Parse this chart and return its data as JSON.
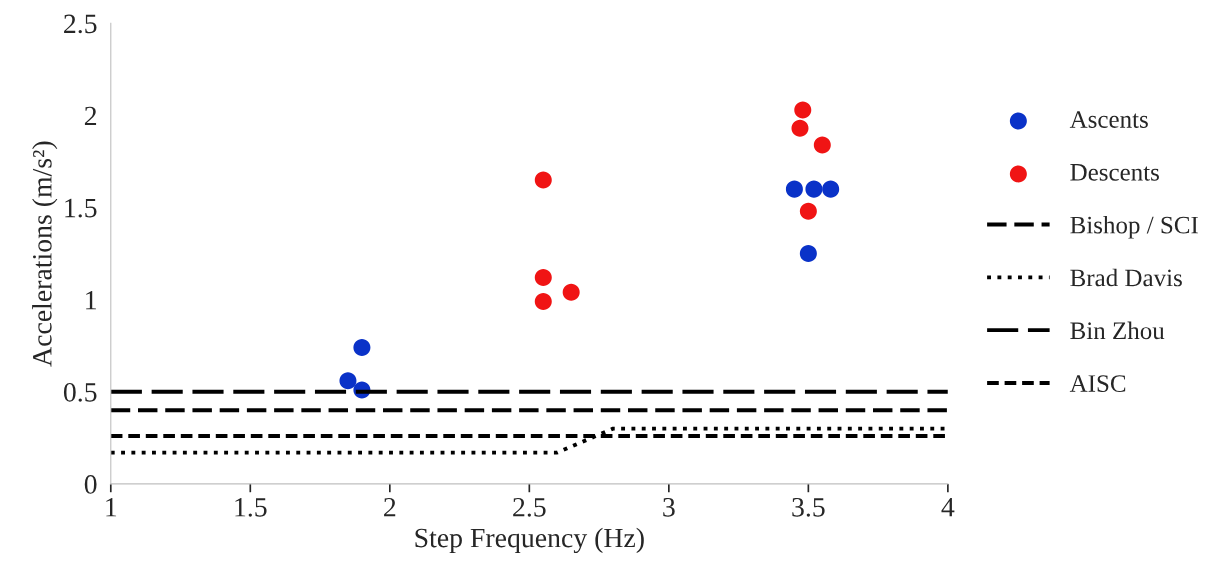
{
  "chart_data": {
    "type": "scatter",
    "xlabel": "Step Frequency (Hz)",
    "ylabel": "Accelerations (m/s²)",
    "xlim": [
      1,
      4
    ],
    "ylim": [
      0,
      2.5
    ],
    "xticks": [
      1,
      1.5,
      2,
      2.5,
      3,
      3.5,
      4
    ],
    "yticks": [
      0,
      0.5,
      1,
      1.5,
      2,
      2.5
    ],
    "grid": false,
    "legend": "right",
    "series": [
      {
        "name": "Ascents",
        "marker": "circle",
        "color": "#0a32c8",
        "x": [
          1.85,
          1.9,
          1.9,
          3.45,
          3.5,
          3.52,
          3.58
        ],
        "values": [
          0.56,
          0.74,
          0.51,
          1.6,
          1.25,
          1.6,
          1.6
        ]
      },
      {
        "name": "Descents",
        "marker": "circle",
        "color": "#f01414",
        "x": [
          2.55,
          2.55,
          2.55,
          2.65,
          3.48,
          3.47,
          3.55,
          3.5
        ],
        "values": [
          1.65,
          1.12,
          0.99,
          1.04,
          2.03,
          1.93,
          1.84,
          1.48
        ]
      },
      {
        "name": "Bishop / SCI",
        "type": "line",
        "line_style": "dashed",
        "color": "#000000",
        "x": [
          1,
          4
        ],
        "values": [
          0.4,
          0.4
        ]
      },
      {
        "name": "Brad Davis",
        "type": "line",
        "line_style": "dotted",
        "color": "#000000",
        "x": [
          1,
          2.6,
          2.8,
          4
        ],
        "values": [
          0.17,
          0.17,
          0.3,
          0.3
        ]
      },
      {
        "name": "Bin Zhou",
        "type": "line",
        "line_style": "dashed",
        "color": "#000000",
        "x": [
          1,
          4
        ],
        "values": [
          0.5,
          0.5
        ]
      },
      {
        "name": "AISC",
        "type": "line",
        "line_style": "dashed",
        "color": "#000000",
        "x": [
          1,
          4
        ],
        "values": [
          0.26,
          0.26
        ]
      }
    ]
  }
}
